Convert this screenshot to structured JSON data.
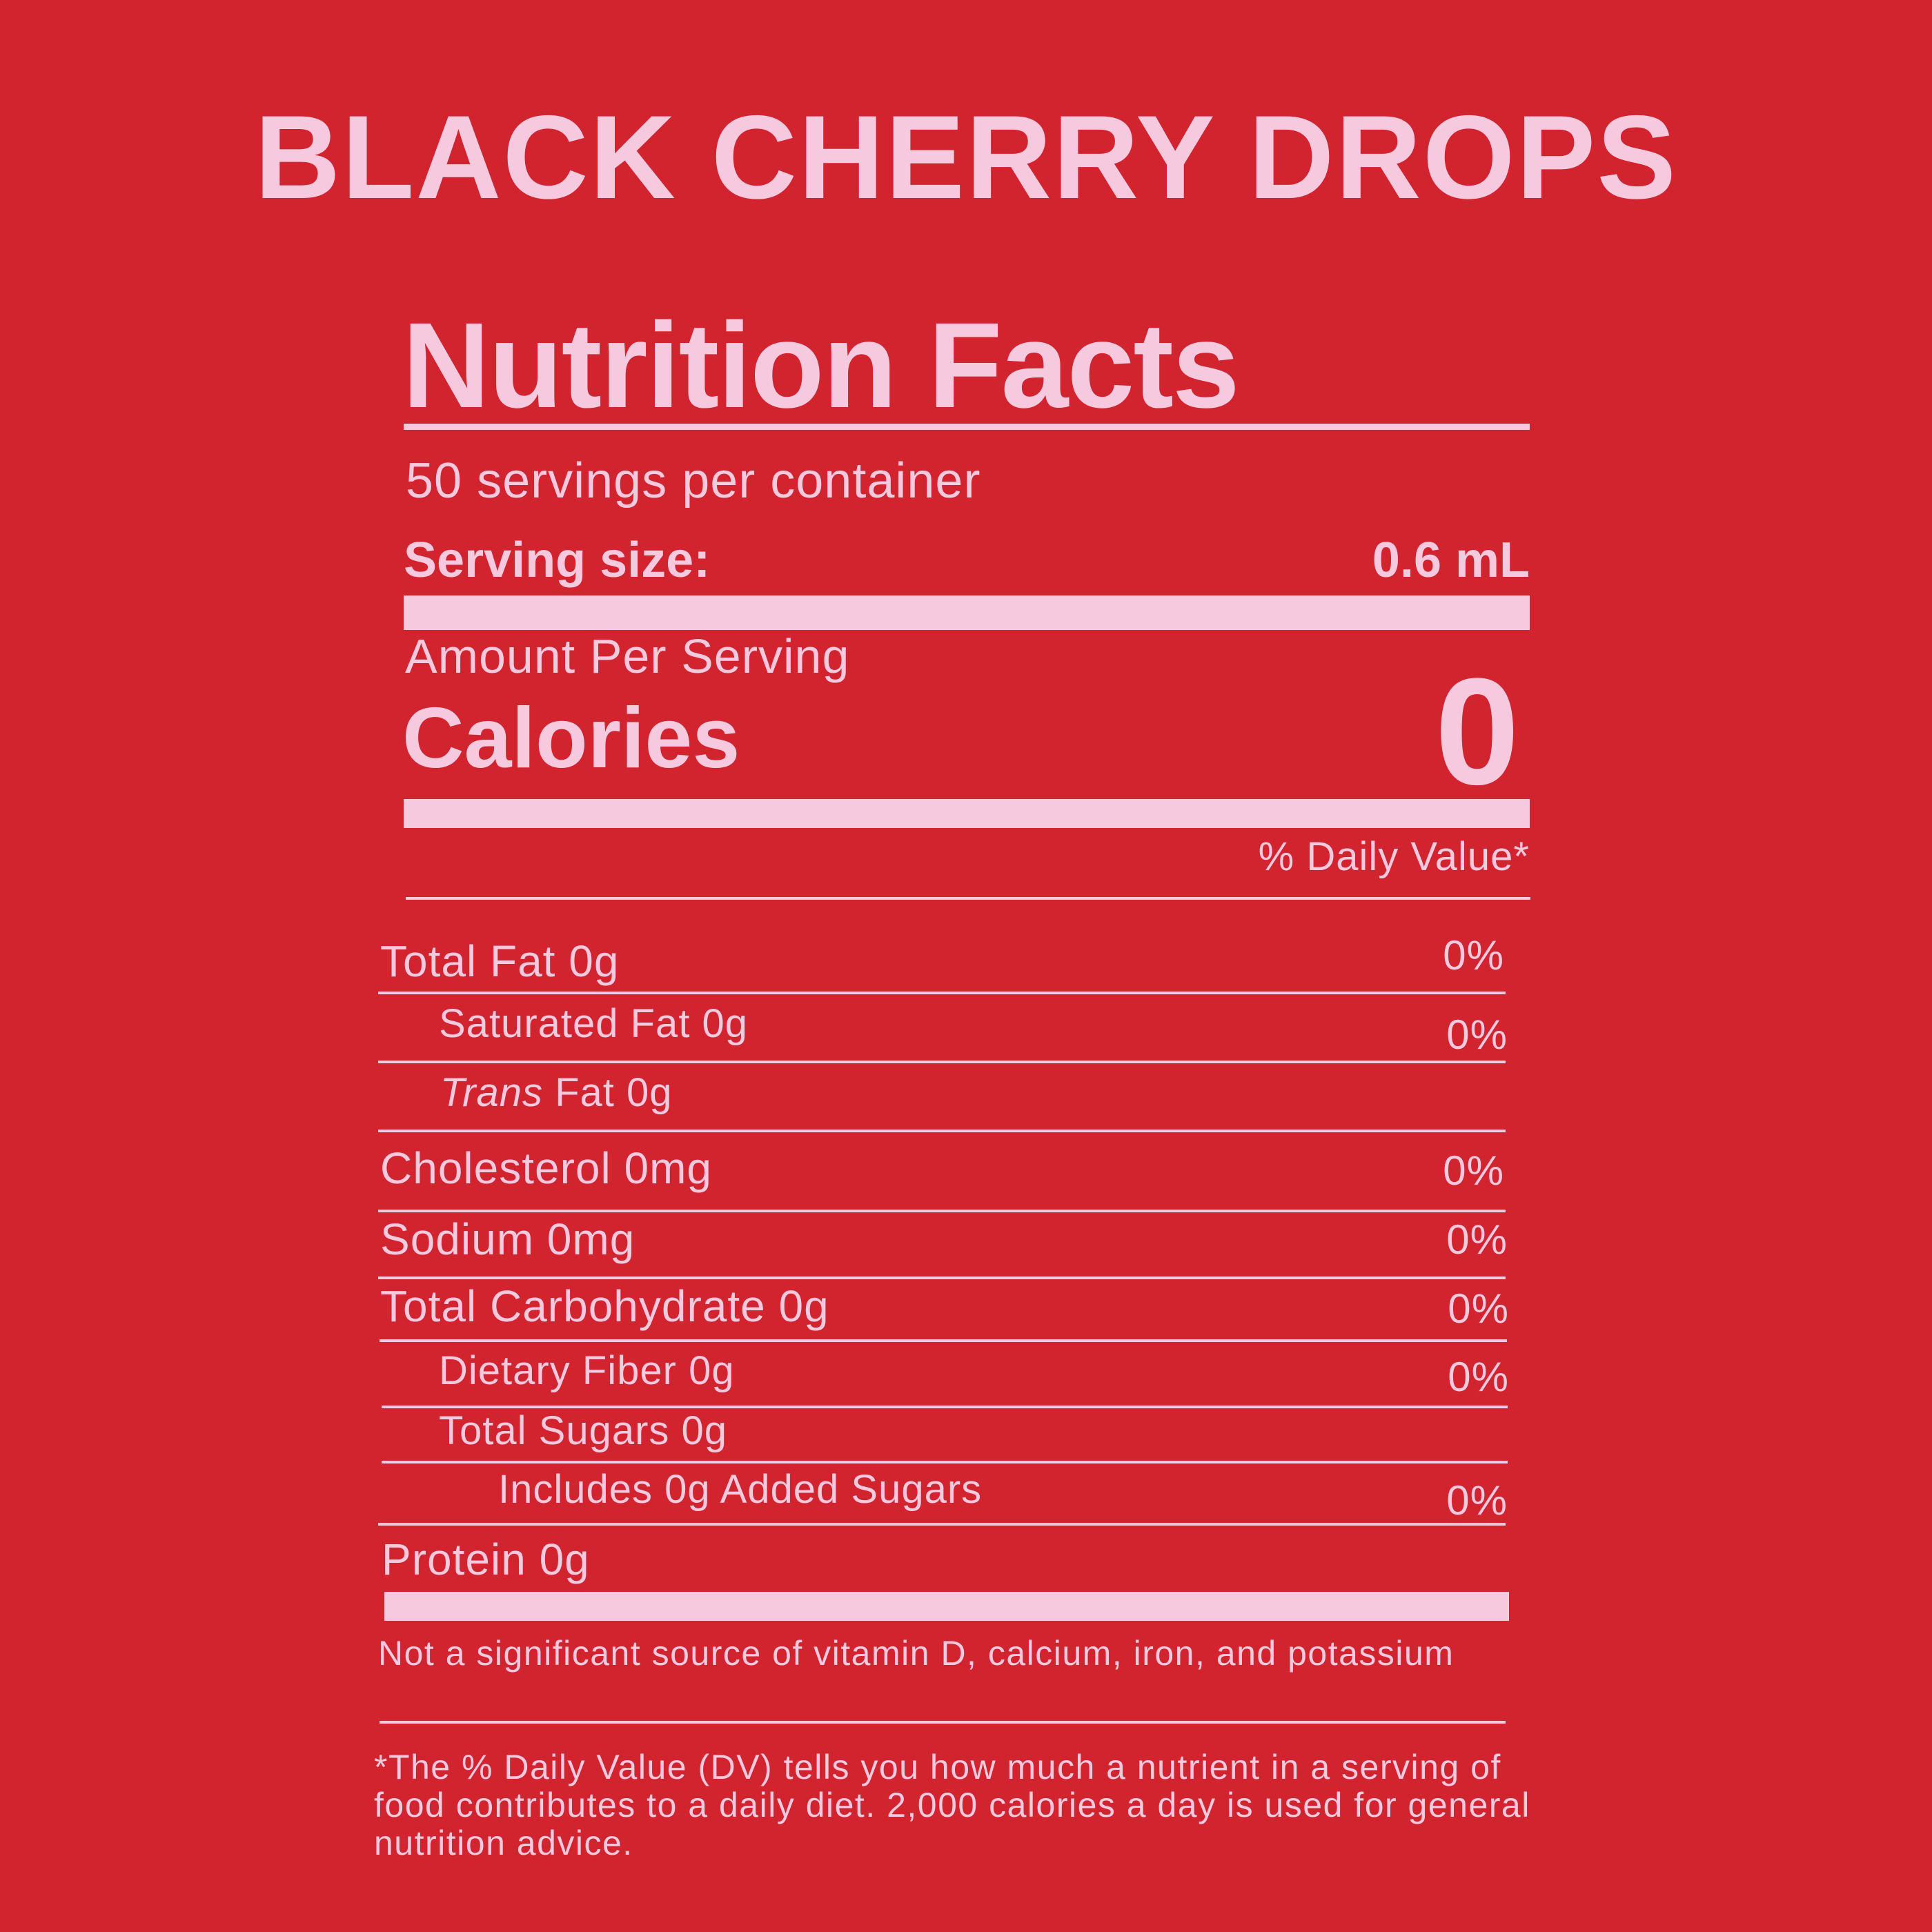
{
  "product_name": "BLACK CHERRY DROPS",
  "label": {
    "heading": "Nutrition Facts",
    "servings_per_container": "50 servings per container",
    "serving_size_label": "Serving size:",
    "serving_size_value": "0.6 mL",
    "amount_per_serving": "Amount Per Serving",
    "calories_label": "Calories",
    "calories_value": "0",
    "daily_value_header": "% Daily Value*"
  },
  "nutrients": {
    "total_fat": {
      "label": "Total Fat 0g",
      "dv": "0%"
    },
    "saturated_fat": {
      "label": "Saturated Fat 0g",
      "dv": "0%"
    },
    "trans_fat": {
      "label_italic": "Trans",
      "label_rest": " Fat 0g"
    },
    "cholesterol": {
      "label": "Cholesterol 0mg",
      "dv": "0%"
    },
    "sodium": {
      "label": "Sodium 0mg",
      "dv": "0%"
    },
    "total_carbohydrate": {
      "label": "Total Carbohydrate 0g",
      "dv": "0%"
    },
    "dietary_fiber": {
      "label": "Dietary Fiber 0g",
      "dv": "0%"
    },
    "total_sugars": {
      "label": "Total Sugars 0g"
    },
    "added_sugars": {
      "label": "Includes 0g Added Sugars",
      "dv": "0%"
    },
    "protein": {
      "label": "Protein 0g"
    }
  },
  "footnotes": {
    "micronutrients": "Not a significant source of vitamin D, calcium, iron, and potassium",
    "daily_value_note": "*The % Daily Value (DV) tells you how much a nutrient in a serving of food contributes to a daily diet. 2,000 calories a day is used for general nutrition advice."
  },
  "colors": {
    "background": "#d1242e",
    "foreground": "#f6c9df"
  }
}
